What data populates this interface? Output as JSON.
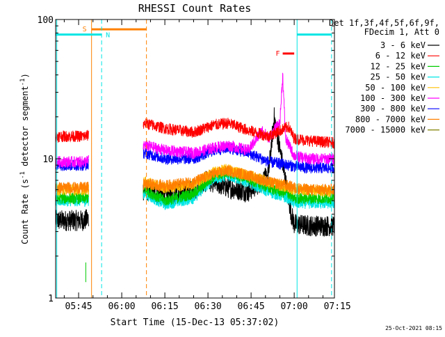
{
  "chart_data": {
    "type": "line",
    "title": "RHESSI Count Rates",
    "xlabel": "Start Time (15-Dec-13 05:37:02)",
    "ylabel": "Count Rate (s",
    "ylabel_sup": "-1",
    "ylabel_mid": " detector segment",
    "ylabel_sup2": "-1",
    "ylabel_end": ")",
    "y_scale": "log",
    "ylim": [
      1,
      100
    ],
    "xlim_minutes": [
      37.0,
      134.0
    ],
    "x_ticks": [
      {
        "minute": 45,
        "label": "05:45"
      },
      {
        "minute": 60,
        "label": "06:00"
      },
      {
        "minute": 75,
        "label": "06:15"
      },
      {
        "minute": 90,
        "label": "06:30"
      },
      {
        "minute": 105,
        "label": "06:45"
      },
      {
        "minute": 120,
        "label": "07:00"
      },
      {
        "minute": 135,
        "label": "07:15"
      }
    ],
    "y_ticks": [
      {
        "value": 1,
        "label": "1"
      },
      {
        "value": 10,
        "label": "10"
      },
      {
        "value": 100,
        "label": "100"
      }
    ],
    "legend_header": [
      "Det 1f,3f,4f,5f,6f,9f,",
      "FDecim 1, Att 0"
    ],
    "series": [
      {
        "name": "3 - 6 keV",
        "color": "#000000",
        "x": [
          37,
          47,
          68,
          75,
          85,
          90,
          97,
          104,
          111,
          113,
          119,
          120,
          125,
          134
        ],
        "y": [
          3.6,
          3.6,
          6.0,
          5.4,
          6.0,
          7.0,
          6.2,
          5.8,
          7.5,
          20,
          4.0,
          3.4,
          3.3,
          3.3
        ]
      },
      {
        "name": "6 - 12 keV",
        "color": "#ff0000",
        "x": [
          37,
          47,
          68,
          75,
          85,
          92,
          97,
          104,
          111,
          118,
          120,
          125,
          134
        ],
        "y": [
          14.5,
          14.5,
          18,
          16.5,
          15.5,
          17.5,
          18,
          16,
          14.5,
          17,
          14,
          13.5,
          13
        ]
      },
      {
        "name": "12 - 25 keV",
        "color": "#00cc00",
        "x": [
          37,
          47,
          68,
          75,
          85,
          92,
          97,
          104,
          111,
          118,
          120,
          125,
          134
        ],
        "y": [
          5.2,
          5.2,
          6.0,
          5.0,
          5.6,
          7.5,
          8.0,
          7.2,
          6.2,
          5.6,
          5.2,
          5.2,
          5.2
        ]
      },
      {
        "name": "25 - 50 keV",
        "color": "#00e5e5",
        "x": [
          37,
          47,
          68,
          75,
          85,
          92,
          97,
          104,
          111,
          118,
          120,
          125,
          134
        ],
        "y": [
          5.0,
          5.0,
          5.6,
          4.7,
          5.2,
          7.2,
          7.6,
          6.8,
          5.8,
          5.2,
          4.8,
          4.8,
          4.8
        ]
      },
      {
        "name": "50 - 100 keV",
        "color": "#ffbf00",
        "x": [
          37,
          47,
          68,
          75,
          85,
          92,
          97,
          104,
          111,
          118,
          120,
          125,
          134
        ],
        "y": [
          6.0,
          6.0,
          6.8,
          6.2,
          6.6,
          8.0,
          8.4,
          7.6,
          6.8,
          6.2,
          6.0,
          6.0,
          5.8
        ]
      },
      {
        "name": "100 - 300 keV",
        "color": "#ff00ff",
        "x": [
          37,
          47,
          68,
          75,
          85,
          92,
          97,
          104,
          109,
          111,
          115,
          116,
          117,
          120,
          125,
          134
        ],
        "y": [
          9.5,
          9.5,
          12.5,
          11.5,
          11,
          12,
          12.5,
          11.5,
          16,
          14,
          18,
          40,
          14,
          10.5,
          10,
          10
        ]
      },
      {
        "name": "300 - 800 keV",
        "color": "#0000ff",
        "x": [
          37,
          47,
          68,
          75,
          85,
          92,
          97,
          104,
          111,
          118,
          120,
          125,
          134
        ],
        "y": [
          9.0,
          9.0,
          11,
          10,
          10,
          11.5,
          12,
          11,
          9.5,
          9.0,
          8.8,
          8.6,
          8.6
        ]
      },
      {
        "name": "800 - 7000 keV",
        "color": "#ff8000",
        "x": [
          37,
          47,
          68,
          75,
          85,
          92,
          97,
          104,
          111,
          118,
          120,
          125,
          134
        ],
        "y": [
          6.2,
          6.2,
          6.6,
          6.4,
          6.8,
          7.8,
          8.2,
          7.6,
          6.8,
          6.4,
          6.2,
          6.0,
          6.0
        ]
      },
      {
        "name": "7000 - 15000 keV",
        "color": "#808000",
        "x": [],
        "y": []
      }
    ],
    "annotations": [
      {
        "id": "S",
        "label": "S",
        "color": "#ff8000",
        "x_start": 49.5,
        "x_end": 68.6,
        "x_solid_line": 49.5,
        "x_dashed_line": 68.6,
        "level": 85
      },
      {
        "id": "N1",
        "label": "N",
        "color": "#00e5e5",
        "x_start": 37.0,
        "x_end": 53.0,
        "x_solid_line": 37.4,
        "x_dashed_line": 53.0,
        "level": 78
      },
      {
        "id": "N2",
        "label": "",
        "color": "#00e5e5",
        "x_start": 121.0,
        "x_end": 133.0,
        "x_solid_line": 121.0,
        "x_dashed_line": 133.0,
        "level": 78
      },
      {
        "id": "F",
        "label": "F",
        "color": "#ff0000",
        "x_start": 116.0,
        "x_end": 120.0,
        "level": 57
      }
    ],
    "data_gap_minutes": [
      48.5,
      67.5
    ],
    "grid": false,
    "legend_position": "right"
  },
  "footer": {
    "timestamp": "25-Oct-2021 08:15"
  }
}
